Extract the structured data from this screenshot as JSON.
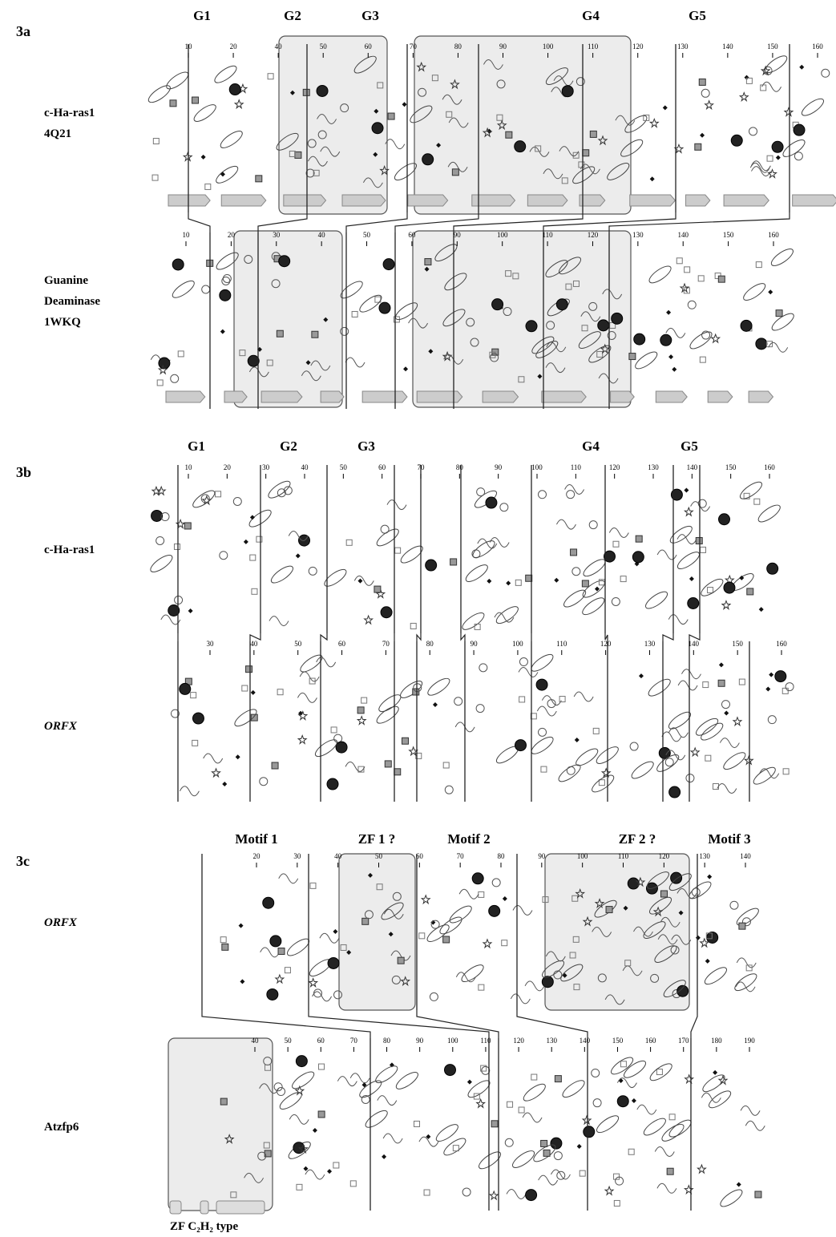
{
  "figure": {
    "panels": [
      {
        "label": "3a",
        "groups": [
          "G1",
          "G2",
          "G3",
          "G4",
          "G5"
        ],
        "rows": [
          {
            "name": [
              "c-Ha-ras1",
              "4Q21"
            ],
            "ticks": [
              10,
              20,
              40,
              50,
              60,
              70,
              80,
              90,
              100,
              110,
              120,
              130,
              140,
              150,
              160
            ]
          },
          {
            "name": [
              "Guanine",
              "Deaminase",
              "1WKQ"
            ],
            "ticks": [
              10,
              20,
              30,
              40,
              50,
              60,
              90,
              100,
              110,
              120,
              130,
              140,
              150,
              160
            ]
          }
        ]
      },
      {
        "label": "3b",
        "groups": [
          "G1",
          "G2",
          "G3",
          "G4",
          "G5"
        ],
        "rows": [
          {
            "name": [
              "c-Ha-ras1"
            ],
            "ticks": [
              10,
              20,
              30,
              40,
              50,
              60,
              70,
              80,
              90,
              100,
              110,
              120,
              130,
              140,
              150,
              160
            ]
          },
          {
            "name": [
              "ORFX"
            ],
            "ticks": [
              30,
              40,
              50,
              60,
              70,
              80,
              90,
              100,
              110,
              120,
              130,
              140,
              150,
              160
            ]
          }
        ]
      },
      {
        "label": "3c",
        "groups": [
          "Motif 1",
          "ZF 1 ?",
          "Motif 2",
          "ZF 2 ?",
          "Motif 3"
        ],
        "rows": [
          {
            "name": [
              "ORFX"
            ],
            "ticks": [
              20,
              30,
              40,
              50,
              60,
              70,
              80,
              90,
              100,
              110,
              120,
              130,
              140
            ]
          },
          {
            "name": [
              "Atzfp6"
            ],
            "ticks": [
              40,
              50,
              60,
              70,
              80,
              90,
              100,
              110,
              120,
              130,
              140,
              150,
              160,
              170,
              180,
              190
            ]
          }
        ]
      }
    ],
    "legend": "ZF C₂H₂ type"
  }
}
